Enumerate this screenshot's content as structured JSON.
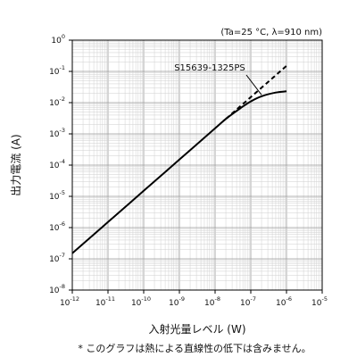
{
  "chart_data": {
    "type": "line",
    "x_scale": "log",
    "y_scale": "log",
    "xlim": [
      "1e-12",
      "1e-5"
    ],
    "ylim": [
      "1e-8",
      "1e0"
    ],
    "grid": true,
    "condition_label": "(Ta=25 °C, λ=910 nm)",
    "xlabel": "入射光量レベル (W)",
    "ylabel": "出力電流 (A)",
    "footnote": "* このグラフは熱による直線性の低下は含みません。",
    "x_ticks": [
      {
        "base": "10",
        "exp": "-12",
        "value": "1e-12"
      },
      {
        "base": "10",
        "exp": "-11",
        "value": "1e-11"
      },
      {
        "base": "10",
        "exp": "-10",
        "value": "1e-10"
      },
      {
        "base": "10",
        "exp": "-9",
        "value": "1e-9"
      },
      {
        "base": "10",
        "exp": "-8",
        "value": "1e-8"
      },
      {
        "base": "10",
        "exp": "-7",
        "value": "1e-7"
      },
      {
        "base": "10",
        "exp": "-6",
        "value": "1e-6"
      },
      {
        "base": "10",
        "exp": "-5",
        "value": "1e-5"
      }
    ],
    "y_ticks": [
      {
        "base": "10",
        "exp": "0",
        "value": "1e0"
      },
      {
        "base": "10",
        "exp": "-1",
        "value": "1e-1"
      },
      {
        "base": "10",
        "exp": "-2",
        "value": "1e-2"
      },
      {
        "base": "10",
        "exp": "-3",
        "value": "1e-3"
      },
      {
        "base": "10",
        "exp": "-4",
        "value": "1e-4"
      },
      {
        "base": "10",
        "exp": "-5",
        "value": "1e-5"
      },
      {
        "base": "10",
        "exp": "-6",
        "value": "1e-6"
      },
      {
        "base": "10",
        "exp": "-7",
        "value": "1e-7"
      },
      {
        "base": "10",
        "exp": "-8",
        "value": "1e-8"
      }
    ],
    "series": [
      {
        "name": "S15639-1325PS",
        "style": "solid",
        "color": "#000000",
        "points": [
          {
            "x": "1e-12",
            "y": "1.5e-7"
          },
          {
            "x": "1e-11",
            "y": "1.5e-6"
          },
          {
            "x": "1e-10",
            "y": "1.5e-5"
          },
          {
            "x": "1e-9",
            "y": "1.5e-4"
          },
          {
            "x": "1e-8",
            "y": "1.5e-3"
          },
          {
            "x": "2e-8",
            "y": "3e-3"
          },
          {
            "x": "5e-8",
            "y": "6.5e-3"
          },
          {
            "x": "1e-7",
            "y": "1.1e-2"
          },
          {
            "x": "2e-7",
            "y": "1.6e-2"
          },
          {
            "x": "5e-7",
            "y": "2.1e-2"
          },
          {
            "x": "1e-6",
            "y": "2.3e-2"
          }
        ]
      },
      {
        "name": "",
        "style": "dashed",
        "color": "#000000",
        "points": [
          {
            "x": "2e-8",
            "y": "3e-3"
          },
          {
            "x": "1e-6",
            "y": "1.5e-1"
          }
        ]
      }
    ]
  }
}
